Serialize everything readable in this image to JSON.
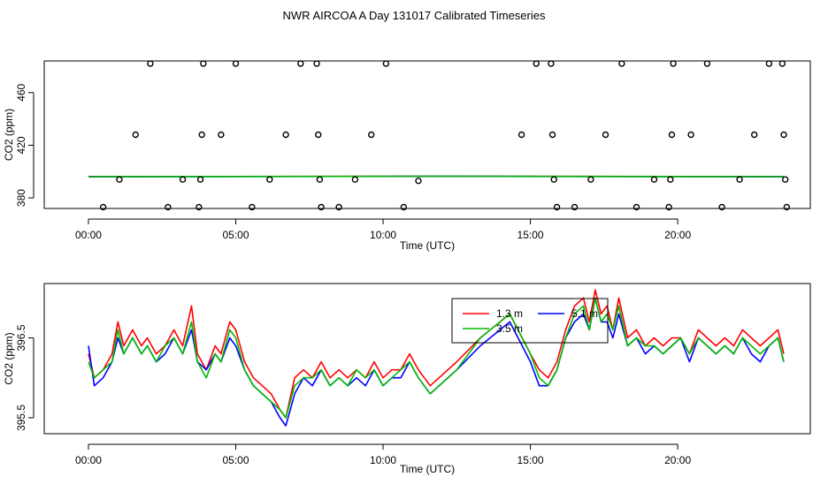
{
  "chart_data": {
    "title": "NWR AIRCOA A  Day 131017  Calibrated Timeseries",
    "panels": [
      {
        "type": "scatter",
        "xlabel": "Time (UTC)",
        "ylabel": "CO2 (ppm)",
        "xlim": [
          -1.5,
          24.5
        ],
        "ylim": [
          372,
          484
        ],
        "xticks": [
          0,
          5,
          10,
          15,
          20
        ],
        "xtick_labels": [
          "00:00",
          "05:00",
          "10:00",
          "15:00",
          "20:00"
        ],
        "yticks": [
          380,
          420,
          460
        ],
        "ytick_labels": [
          "380",
          "420",
          "460"
        ],
        "points_x": [
          0.5,
          1.05,
          1.6,
          2.1,
          2.7,
          3.2,
          3.75,
          3.8,
          3.85,
          3.9,
          4.5,
          5.0,
          5.55,
          6.15,
          6.7,
          7.2,
          7.75,
          7.8,
          7.85,
          7.9,
          8.5,
          9.05,
          9.6,
          10.1,
          10.7,
          11.2,
          14.7,
          15.2,
          15.7,
          15.75,
          15.8,
          15.9,
          16.5,
          17.05,
          17.55,
          18.1,
          18.6,
          19.2,
          19.7,
          19.75,
          19.8,
          19.85,
          20.45,
          21.0,
          21.5,
          22.1,
          22.6,
          23.1,
          23.55,
          23.6,
          23.65,
          23.7
        ],
        "points_y": [
          373,
          394,
          428,
          482,
          373,
          394,
          373,
          394,
          428,
          482,
          428,
          482,
          373,
          394,
          428,
          482,
          482,
          428,
          394,
          373,
          373,
          394,
          428,
          482,
          373,
          393,
          428,
          482,
          482,
          428,
          394,
          373,
          373,
          394,
          428,
          482,
          373,
          394,
          373,
          394,
          428,
          482,
          428,
          482,
          373,
          394,
          428,
          482,
          482,
          428,
          394,
          373
        ],
        "series": [
          {
            "name": "1.3 m",
            "color": "#ff0000",
            "x": [
              0,
              12,
              23.6
            ],
            "y": [
              396.2,
              396.5,
              396.2
            ]
          },
          {
            "name": "5.1 m",
            "color": "#0000ff",
            "x": [
              0,
              12,
              23.6
            ],
            "y": [
              396.1,
              396.4,
              396.1
            ]
          },
          {
            "name": "3.5 m",
            "color": "#00bb00",
            "x": [
              0,
              12,
              23.6
            ],
            "y": [
              396.15,
              396.45,
              396.15
            ]
          }
        ]
      },
      {
        "type": "line",
        "xlabel": "Time (UTC)",
        "ylabel": "CO2 (ppm)",
        "xlim": [
          -1.5,
          24.5
        ],
        "ylim": [
          395.3,
          397.18
        ],
        "xticks": [
          0,
          5,
          10,
          15,
          20
        ],
        "xtick_labels": [
          "00:00",
          "05:00",
          "10:00",
          "15:00",
          "20:00"
        ],
        "yticks": [
          395.5,
          396.5
        ],
        "ytick_labels": [
          "395.5",
          "396.5"
        ],
        "legend": {
          "position": "top-right",
          "entries": [
            "1.3 m",
            "5.1 m",
            "3.5 m"
          ]
        },
        "series": [
          {
            "name": "1.3 m",
            "color": "#ff0000",
            "x": [
              0,
              0.2,
              0.5,
              0.8,
              1.0,
              1.2,
              1.5,
              1.8,
              2.0,
              2.3,
              2.6,
              2.9,
              3.2,
              3.5,
              3.7,
              4.0,
              4.3,
              4.5,
              4.8,
              5.0,
              5.3,
              5.6,
              5.9,
              6.2,
              6.5,
              6.7,
              7.0,
              7.3,
              7.6,
              7.9,
              8.2,
              8.5,
              8.8,
              9.1,
              9.4,
              9.7,
              10.0,
              10.3,
              10.6,
              10.9,
              11.2,
              11.6,
              12.5,
              13.3,
              14.3,
              15.0,
              15.3,
              15.6,
              15.9,
              16.2,
              16.5,
              16.8,
              17.0,
              17.2,
              17.4,
              17.6,
              17.8,
              18.0,
              18.3,
              18.6,
              18.9,
              19.2,
              19.5,
              19.8,
              20.1,
              20.4,
              20.7,
              21.0,
              21.3,
              21.6,
              21.9,
              22.2,
              22.5,
              22.8,
              23.1,
              23.4,
              23.6
            ],
            "y": [
              396.3,
              396.0,
              396.1,
              396.3,
              396.7,
              396.4,
              396.6,
              396.4,
              396.5,
              396.3,
              396.4,
              396.6,
              396.4,
              396.9,
              396.3,
              396.1,
              396.4,
              396.3,
              396.7,
              396.6,
              396.2,
              396.0,
              395.9,
              395.8,
              395.6,
              395.5,
              396.0,
              396.1,
              396.0,
              396.2,
              396.0,
              396.1,
              396.0,
              396.1,
              396.0,
              396.2,
              396.0,
              396.1,
              396.1,
              396.3,
              396.1,
              395.9,
              396.2,
              396.5,
              396.8,
              396.3,
              396.1,
              396.0,
              396.2,
              396.6,
              396.9,
              397.0,
              396.7,
              397.1,
              396.8,
              396.9,
              396.6,
              397.0,
              396.5,
              396.6,
              396.4,
              396.5,
              396.4,
              396.5,
              396.5,
              396.3,
              396.6,
              396.5,
              396.4,
              396.5,
              396.4,
              396.6,
              396.5,
              396.4,
              396.5,
              396.6,
              396.3
            ]
          },
          {
            "name": "5.1 m",
            "color": "#0000ff",
            "x": [
              0,
              0.2,
              0.5,
              0.8,
              1.0,
              1.2,
              1.5,
              1.8,
              2.0,
              2.3,
              2.6,
              2.9,
              3.2,
              3.5,
              3.7,
              4.0,
              4.3,
              4.5,
              4.8,
              5.0,
              5.3,
              5.6,
              5.9,
              6.2,
              6.5,
              6.7,
              7.0,
              7.3,
              7.6,
              7.9,
              8.2,
              8.5,
              8.8,
              9.1,
              9.4,
              9.7,
              10.0,
              10.3,
              10.6,
              10.9,
              11.2,
              11.6,
              12.5,
              13.3,
              14.3,
              15.0,
              15.3,
              15.6,
              15.9,
              16.2,
              16.5,
              16.8,
              17.0,
              17.2,
              17.4,
              17.6,
              17.8,
              18.0,
              18.3,
              18.6,
              18.9,
              19.2,
              19.5,
              19.8,
              20.1,
              20.4,
              20.7,
              21.0,
              21.3,
              21.6,
              21.9,
              22.2,
              22.5,
              22.8,
              23.1,
              23.4,
              23.6
            ],
            "y": [
              396.4,
              395.9,
              396.0,
              396.2,
              396.5,
              396.3,
              396.5,
              396.3,
              396.4,
              396.2,
              396.3,
              396.5,
              396.3,
              396.6,
              396.2,
              396.1,
              396.3,
              396.2,
              396.5,
              396.4,
              396.1,
              395.9,
              395.8,
              395.7,
              395.5,
              395.4,
              395.8,
              396.0,
              395.9,
              396.1,
              395.9,
              396.0,
              395.9,
              396.0,
              395.9,
              396.1,
              395.9,
              396.0,
              396.0,
              396.2,
              396.0,
              395.8,
              396.1,
              396.4,
              396.7,
              396.2,
              395.9,
              395.9,
              396.1,
              396.5,
              396.7,
              396.8,
              396.6,
              397.0,
              396.7,
              396.7,
              396.5,
              396.8,
              396.4,
              396.5,
              396.3,
              396.4,
              396.3,
              396.4,
              396.5,
              396.2,
              396.5,
              396.4,
              396.3,
              396.4,
              396.3,
              396.5,
              396.3,
              396.2,
              396.4,
              396.5,
              396.2
            ]
          },
          {
            "name": "3.5 m",
            "color": "#00bb00",
            "x": [
              0,
              0.2,
              0.5,
              0.8,
              1.0,
              1.2,
              1.5,
              1.8,
              2.0,
              2.3,
              2.6,
              2.9,
              3.2,
              3.5,
              3.7,
              4.0,
              4.3,
              4.5,
              4.8,
              5.0,
              5.3,
              5.6,
              5.9,
              6.2,
              6.5,
              6.7,
              7.0,
              7.3,
              7.6,
              7.9,
              8.2,
              8.5,
              8.8,
              9.1,
              9.4,
              9.7,
              10.0,
              10.3,
              10.6,
              10.9,
              11.2,
              11.6,
              12.5,
              13.3,
              14.3,
              15.0,
              15.3,
              15.6,
              15.9,
              16.2,
              16.5,
              16.8,
              17.0,
              17.2,
              17.4,
              17.6,
              17.8,
              18.0,
              18.3,
              18.6,
              18.9,
              19.2,
              19.5,
              19.8,
              20.1,
              20.4,
              20.7,
              21.0,
              21.3,
              21.6,
              21.9,
              22.2,
              22.5,
              22.8,
              23.1,
              23.4,
              23.6
            ],
            "y": [
              396.2,
              396.0,
              396.1,
              396.2,
              396.6,
              396.3,
              396.5,
              396.3,
              396.4,
              396.2,
              396.4,
              396.5,
              396.3,
              396.7,
              396.2,
              396.0,
              396.3,
              396.2,
              396.6,
              396.5,
              396.1,
              395.9,
              395.8,
              395.7,
              395.6,
              395.5,
              395.9,
              396.0,
              396.0,
              396.1,
              395.9,
              396.0,
              395.9,
              396.1,
              396.0,
              396.1,
              395.9,
              396.0,
              396.1,
              396.2,
              396.0,
              395.8,
              396.1,
              396.5,
              396.8,
              396.3,
              396.0,
              395.9,
              396.1,
              396.5,
              396.8,
              396.9,
              396.6,
              397.0,
              396.7,
              396.8,
              396.6,
              396.9,
              396.4,
              396.5,
              396.4,
              396.4,
              396.3,
              396.4,
              396.5,
              396.3,
              396.5,
              396.4,
              396.3,
              396.4,
              396.3,
              396.5,
              396.4,
              396.3,
              396.4,
              396.5,
              396.2
            ]
          }
        ]
      }
    ]
  }
}
